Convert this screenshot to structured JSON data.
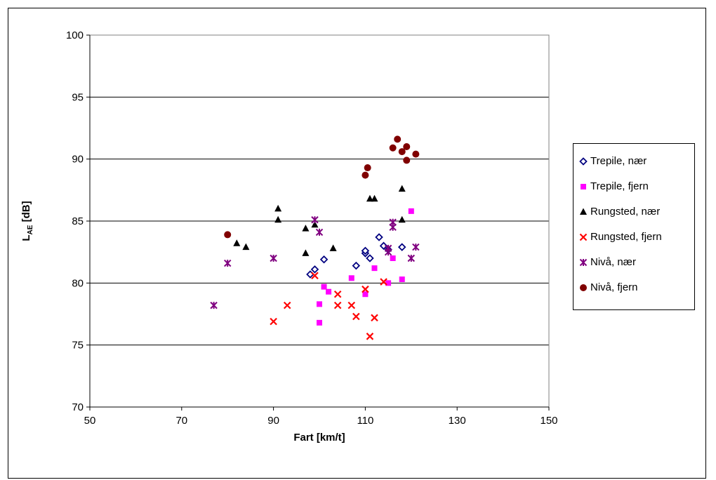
{
  "chart_data": {
    "type": "scatter",
    "title": "",
    "xlabel": "Fart [km/t]",
    "ylabel": {
      "main": "L",
      "sub": "AE",
      "rest": " [dB]"
    },
    "xlim": [
      50,
      150
    ],
    "ylim": [
      70,
      100
    ],
    "xticks": [
      "50",
      "70",
      "90",
      "110",
      "130",
      "150"
    ],
    "yticks": [
      "70",
      "75",
      "80",
      "85",
      "90",
      "95",
      "100"
    ],
    "grid": "horizontal",
    "legend_position": "right",
    "series": [
      {
        "name": "Trepile, nær",
        "marker": "diamond-open",
        "color": "#000080",
        "points": [
          [
            98,
            80.7
          ],
          [
            99,
            81.1
          ],
          [
            101,
            81.9
          ],
          [
            108,
            81.4
          ],
          [
            110,
            82.4
          ],
          [
            110,
            82.6
          ],
          [
            111,
            82.0
          ],
          [
            113,
            83.7
          ],
          [
            114,
            83.0
          ],
          [
            115,
            82.7
          ],
          [
            118,
            82.9
          ]
        ]
      },
      {
        "name": "Trepile, fjern",
        "marker": "square",
        "color": "#ff00ff",
        "points": [
          [
            100,
            76.8
          ],
          [
            100,
            78.3
          ],
          [
            101,
            79.7
          ],
          [
            102,
            79.3
          ],
          [
            107,
            80.4
          ],
          [
            110,
            79.1
          ],
          [
            112,
            81.2
          ],
          [
            115,
            80.0
          ],
          [
            116,
            82.0
          ],
          [
            118,
            80.3
          ],
          [
            120,
            85.8
          ]
        ]
      },
      {
        "name": "Rungsted, nær",
        "marker": "triangle",
        "color": "#000000",
        "points": [
          [
            82,
            83.2
          ],
          [
            84,
            82.9
          ],
          [
            91,
            86.0
          ],
          [
            91,
            85.1
          ],
          [
            97,
            84.4
          ],
          [
            97,
            82.4
          ],
          [
            99,
            84.7
          ],
          [
            103,
            82.8
          ],
          [
            111,
            86.8
          ],
          [
            112,
            86.8
          ],
          [
            118,
            87.6
          ],
          [
            118,
            85.1
          ]
        ]
      },
      {
        "name": "Rungsted, fjern",
        "marker": "x",
        "color": "#ff0000",
        "points": [
          [
            90,
            76.9
          ],
          [
            93,
            78.2
          ],
          [
            99,
            80.6
          ],
          [
            104,
            79.1
          ],
          [
            104,
            78.2
          ],
          [
            107,
            78.2
          ],
          [
            108,
            77.3
          ],
          [
            110,
            79.5
          ],
          [
            111,
            75.7
          ],
          [
            112,
            77.2
          ],
          [
            114,
            80.1
          ]
        ]
      },
      {
        "name": "Nivå, nær",
        "marker": "asterisk",
        "color": "#800080",
        "points": [
          [
            77,
            78.2
          ],
          [
            80,
            81.6
          ],
          [
            90,
            82.0
          ],
          [
            99,
            85.1
          ],
          [
            100,
            84.1
          ],
          [
            115,
            82.5
          ],
          [
            115,
            82.8
          ],
          [
            116,
            84.9
          ],
          [
            116,
            84.5
          ],
          [
            120,
            82.0
          ],
          [
            121,
            82.9
          ]
        ]
      },
      {
        "name": "Nivå, fjern",
        "marker": "circle",
        "color": "#800000",
        "points": [
          [
            80,
            83.9
          ],
          [
            110,
            88.7
          ],
          [
            110.5,
            89.3
          ],
          [
            116,
            90.9
          ],
          [
            117,
            91.6
          ],
          [
            118,
            90.6
          ],
          [
            119,
            91.0
          ],
          [
            119,
            89.9
          ],
          [
            121,
            90.4
          ]
        ]
      }
    ]
  }
}
